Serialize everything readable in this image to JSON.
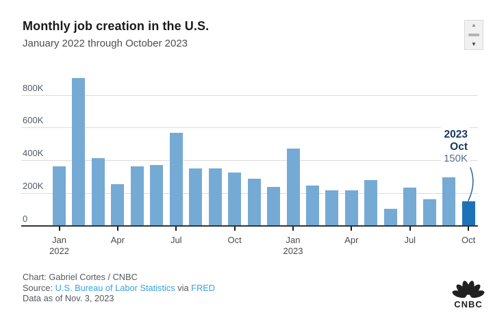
{
  "header": {
    "title": "Monthly job creation in the U.S.",
    "subtitle": "January 2022 through October 2023"
  },
  "stepper": {
    "up_icon": "▲",
    "down_icon": "▼"
  },
  "chart_data": {
    "type": "bar",
    "title": "Monthly job creation in the U.S.",
    "subtitle": "January 2022 through October 2023",
    "unit": "jobs added, thousands",
    "categories": [
      "Jan 2022",
      "Feb 2022",
      "Mar 2022",
      "Apr 2022",
      "May 2022",
      "Jun 2022",
      "Jul 2022",
      "Aug 2022",
      "Sep 2022",
      "Oct 2022",
      "Nov 2022",
      "Dec 2022",
      "Jan 2023",
      "Feb 2023",
      "Mar 2023",
      "Apr 2023",
      "May 2023",
      "Jun 2023",
      "Jul 2023",
      "Aug 2023",
      "Sep 2023",
      "Oct 2023"
    ],
    "values": [
      364,
      904,
      414,
      254,
      364,
      370,
      568,
      352,
      350,
      324,
      290,
      239,
      472,
      248,
      217,
      217,
      281,
      105,
      236,
      165,
      297,
      150
    ],
    "highlight_index": 21,
    "bar_color": "#75aad5",
    "highlight_color": "#1e72b8",
    "ylim": [
      0,
      950
    ],
    "grid": true,
    "yticks": [
      {
        "v": 0,
        "label": "0"
      },
      {
        "v": 200,
        "label": "200K"
      },
      {
        "v": 400,
        "label": "400K"
      },
      {
        "v": 600,
        "label": "600K"
      },
      {
        "v": 800,
        "label": "800K"
      }
    ],
    "xticks": [
      {
        "i": 0,
        "label": "Jan",
        "year": "2022"
      },
      {
        "i": 3,
        "label": "Apr",
        "year": ""
      },
      {
        "i": 6,
        "label": "Jul",
        "year": ""
      },
      {
        "i": 9,
        "label": "Oct",
        "year": ""
      },
      {
        "i": 12,
        "label": "Jan",
        "year": "2023"
      },
      {
        "i": 15,
        "label": "Apr",
        "year": ""
      },
      {
        "i": 18,
        "label": "Jul",
        "year": ""
      },
      {
        "i": 21,
        "label": "Oct",
        "year": ""
      }
    ],
    "annotation": {
      "year": "2023",
      "month": "Oct",
      "value_label": "150K",
      "target_index": 21
    }
  },
  "colors": {
    "bar": "#75aad5",
    "bar_highlight": "#1e72b8",
    "annotation_text": "#16375b",
    "annotation_value": "#51708e",
    "connector": "#3a689d",
    "grid": "#dcdcdc",
    "axis": "#333333",
    "link": "#3aa0dc",
    "logo": "#202020"
  },
  "footer": {
    "credit_line": "Chart: Gabriel Cortes / CNBC",
    "source_prefix": "Source: ",
    "source_link": "U.S. Bureau of Labor Statistics",
    "source_mid": " via ",
    "source_link2": "FRED",
    "data_as_of": "Data as of Nov. 3, 2023",
    "logo_text": "CNBC"
  }
}
